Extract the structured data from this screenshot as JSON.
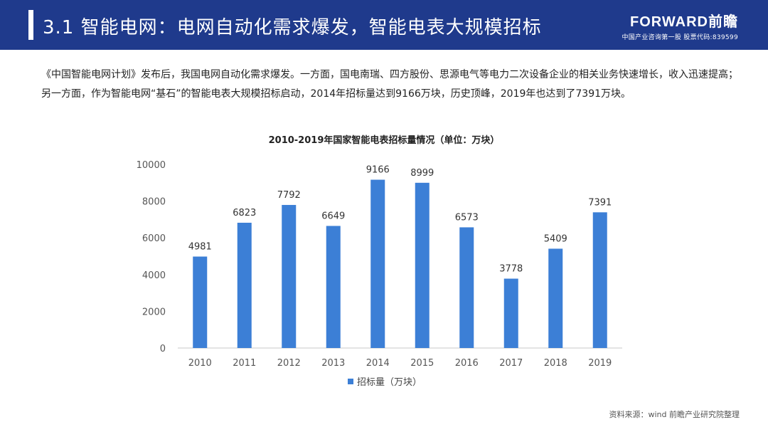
{
  "header": {
    "title": "3.1 智能电网：电网自动化需求爆发，智能电表大规模招标",
    "brand": "FORWARD前瞻",
    "brand_tagline": "中国产业咨询第一股 股票代码:839599"
  },
  "intro_text": "《中国智能电网计划》发布后，我国电网自动化需求爆发。一方面，国电南瑞、四方股份、思源电气等电力二次设备企业的相关业务快速增长，收入迅速提高；另一方面，作为智能电网“基石”的智能电表大规模招标启动，2014年招标量达到9166万块，历史顶峰，2019年也达到了7391万块。",
  "source": "资料来源：wind 前瞻产业研究院整理",
  "colors": {
    "header": "#1f3a8c",
    "bar": "#3c7fd6"
  },
  "chart_data": {
    "type": "bar",
    "title": "2010-2019年国家智能电表招标量情况（单位：万块）",
    "categories": [
      "2010",
      "2011",
      "2012",
      "2013",
      "2014",
      "2015",
      "2016",
      "2017",
      "2018",
      "2019"
    ],
    "series": [
      {
        "name": "招标量（万块）",
        "values": [
          4981,
          6823,
          7792,
          6649,
          9166,
          8999,
          6573,
          3778,
          5409,
          7391
        ]
      }
    ],
    "ylim": [
      0,
      10000
    ],
    "yticks": [
      "0",
      "2000",
      "4000",
      "6000",
      "8000",
      "10000"
    ],
    "grid": false,
    "legend": "bottom-center"
  }
}
